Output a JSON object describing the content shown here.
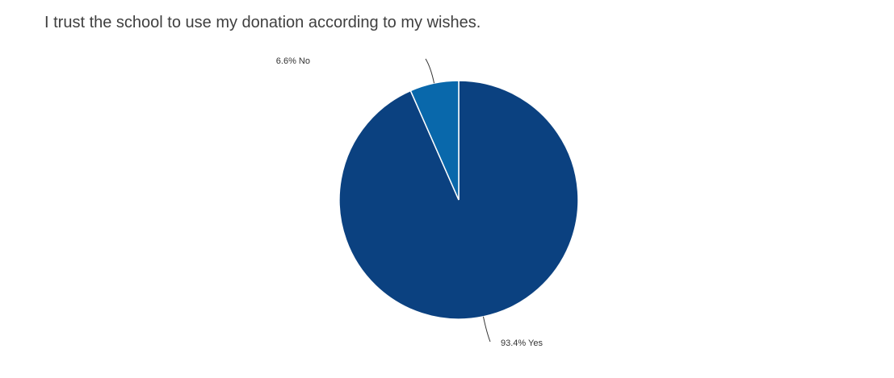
{
  "chart_data": {
    "type": "pie",
    "title": "I trust the school to use my donation according to my wishes.",
    "slices": [
      {
        "label": "Yes",
        "value": 93.4,
        "display": "93.4% Yes",
        "color": "#0b4180"
      },
      {
        "label": "No",
        "value": 6.6,
        "display": "6.6% No",
        "color": "#0968ab"
      }
    ]
  }
}
